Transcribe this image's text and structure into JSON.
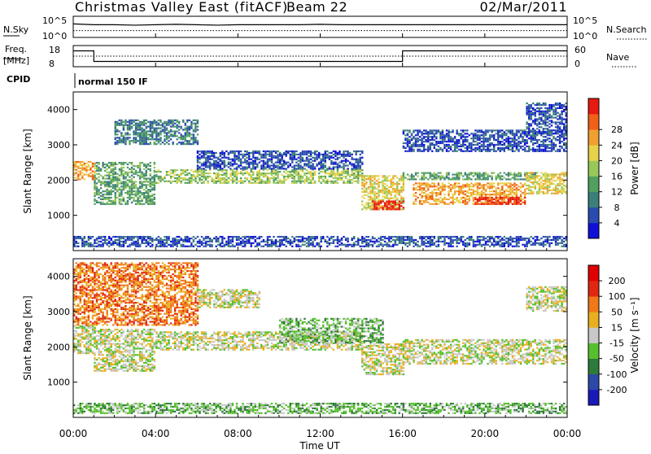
{
  "header": {
    "title": "Christmas Valley East (fitACF)",
    "beam": "Beam 22",
    "date": "02/Mar/2011"
  },
  "chart_data": [
    {
      "type": "line",
      "panel": "noise",
      "left_label": "N.Sky",
      "left_ticks": [
        "10^5",
        "10^0"
      ],
      "right_label": "N.Search",
      "right_ticks": [
        "10^5",
        "10^0"
      ],
      "x": [
        "00:00",
        "01:00",
        "02:00",
        "03:00",
        "04:00",
        "05:00",
        "06:00",
        "07:00",
        "08:00",
        "09:00",
        "10:00",
        "11:00",
        "12:00",
        "13:00",
        "14:00",
        "15:00",
        "16:00",
        "17:00",
        "18:00",
        "19:00",
        "20:00",
        "21:00",
        "22:00",
        "23:00",
        "24:00"
      ],
      "series": [
        {
          "label_ref": "left_label",
          "style": "solid",
          "values": [
            3.2,
            3.0,
            3.0,
            2.9,
            3.0,
            3.1,
            3.0,
            2.9,
            3.0,
            3.0,
            3.0,
            3.0,
            3.1,
            3.0,
            3.0,
            3.0,
            3.0,
            3.0,
            3.0,
            3.0,
            3.0,
            3.0,
            3.0,
            3.0,
            3.0
          ]
        },
        {
          "label_ref": "right_label",
          "style": "dotted",
          "values": [
            1.6,
            1.6,
            1.6,
            1.6,
            1.6,
            1.6,
            1.6,
            1.6,
            1.6,
            1.6,
            1.6,
            1.6,
            1.6,
            1.6,
            1.6,
            1.6,
            1.6,
            1.6,
            1.6,
            1.6,
            1.6,
            1.6,
            1.6,
            1.6,
            1.6
          ]
        }
      ]
    },
    {
      "type": "line",
      "panel": "frequency",
      "left_label": "Freq. [MHz]",
      "left_ticks": [
        "18",
        "8"
      ],
      "right_label": "Nave",
      "right_ticks": [
        "60",
        "0"
      ],
      "freq_MHz": [
        {
          "from": "00:00",
          "to": "01:00",
          "value": 15.5
        },
        {
          "from": "01:00",
          "to": "16:00",
          "value": 10.5
        },
        {
          "from": "16:00",
          "to": "24:00",
          "value": 15.5
        }
      ],
      "nave": 30
    },
    {
      "type": "table",
      "panel": "cpid",
      "label": "CPID",
      "entries": [
        {
          "from": "00:00",
          "to": "24:00",
          "text": "normal 150 IF"
        }
      ]
    },
    {
      "type": "heatmap",
      "panel": "power",
      "ylabel": "Slant Range [km]",
      "yticks": [
        1000,
        2000,
        3000,
        4000
      ],
      "ylim": [
        0,
        4500
      ],
      "colorbar_label": "Power [dB]",
      "colorbar_ticks": [
        "4",
        "8",
        "12",
        "16",
        "20",
        "24",
        "28"
      ],
      "colors": [
        "#1010d8",
        "#2a4cb0",
        "#3c7e7a",
        "#52a060",
        "#98c858",
        "#e6d24a",
        "#f0a030",
        "#f06018",
        "#e61a10"
      ],
      "bands": [
        {
          "t0": 0.0,
          "t1": 1.0,
          "r0": 2000,
          "r1": 2500,
          "level": 6
        },
        {
          "t0": 1.0,
          "t1": 4.0,
          "r0": 1300,
          "r1": 2500,
          "level": 3
        },
        {
          "t0": 2.0,
          "t1": 6.0,
          "r0": 3000,
          "r1": 3700,
          "level": 2
        },
        {
          "t0": 4.0,
          "t1": 14.0,
          "r0": 1900,
          "r1": 2300,
          "level": 4
        },
        {
          "t0": 6.0,
          "t1": 14.0,
          "r0": 2300,
          "r1": 2800,
          "level": 1
        },
        {
          "t0": 14.0,
          "t1": 16.0,
          "r0": 1150,
          "r1": 2100,
          "level": 5
        },
        {
          "t0": 14.5,
          "t1": 16.0,
          "r0": 1150,
          "r1": 1400,
          "level": 8
        },
        {
          "t0": 16.0,
          "t1": 22.5,
          "r0": 2000,
          "r1": 2200,
          "level": 3
        },
        {
          "t0": 16.5,
          "t1": 22.0,
          "r0": 1300,
          "r1": 1900,
          "level": 6
        },
        {
          "t0": 19.5,
          "t1": 22.0,
          "r0": 1300,
          "r1": 1500,
          "level": 8
        },
        {
          "t0": 22.0,
          "t1": 24.0,
          "r0": 1600,
          "r1": 2200,
          "level": 5
        },
        {
          "t0": 16.0,
          "t1": 24.0,
          "r0": 2800,
          "r1": 3400,
          "level": 1
        },
        {
          "t0": 22.0,
          "t1": 24.0,
          "r0": 3300,
          "r1": 4200,
          "level": 1
        },
        {
          "t0": 0.0,
          "t1": 24.0,
          "r0": 100,
          "r1": 400,
          "level": 1
        }
      ]
    },
    {
      "type": "heatmap",
      "panel": "velocity",
      "ylabel": "Slant Range [km]",
      "yticks": [
        1000,
        2000,
        3000,
        4000
      ],
      "ylim": [
        0,
        4500
      ],
      "colorbar_label": "Velocity [m s⁻¹]",
      "colorbar_ticks": [
        "200",
        "100",
        "50",
        "15",
        "-15",
        "-50",
        "-100",
        "-200"
      ],
      "colors": [
        "#1a1ab8",
        "#2d48a8",
        "#2e7a3a",
        "#56c02c",
        "#c8c8c8",
        "#e8b020",
        "#f07818",
        "#e02810",
        "#e00000"
      ],
      "bands": [
        {
          "t0": 0.0,
          "t1": 1.0,
          "r0": 1800,
          "r1": 2600,
          "level": 4
        },
        {
          "t0": 1.0,
          "t1": 4.0,
          "r0": 1300,
          "r1": 2500,
          "level": 4
        },
        {
          "t0": 0.0,
          "t1": 6.0,
          "r0": 2600,
          "r1": 4400,
          "level": 6
        },
        {
          "t0": 4.0,
          "t1": 14.0,
          "r0": 1900,
          "r1": 2400,
          "level": 4
        },
        {
          "t0": 6.0,
          "t1": 9.0,
          "r0": 3100,
          "r1": 3600,
          "level": 4
        },
        {
          "t0": 10.0,
          "t1": 15.0,
          "r0": 2100,
          "r1": 2800,
          "level": 3
        },
        {
          "t0": 14.0,
          "t1": 16.0,
          "r0": 1200,
          "r1": 2100,
          "level": 4
        },
        {
          "t0": 16.0,
          "t1": 24.0,
          "r0": 1500,
          "r1": 2200,
          "level": 4
        },
        {
          "t0": 22.0,
          "t1": 24.0,
          "r0": 3000,
          "r1": 3700,
          "level": 4
        },
        {
          "t0": 0.0,
          "t1": 24.0,
          "r0": 100,
          "r1": 400,
          "level": 3
        }
      ]
    }
  ],
  "x_axis": {
    "label": "Time UT",
    "ticks": [
      "00:00",
      "04:00",
      "08:00",
      "12:00",
      "16:00",
      "20:00",
      "00:00"
    ]
  }
}
